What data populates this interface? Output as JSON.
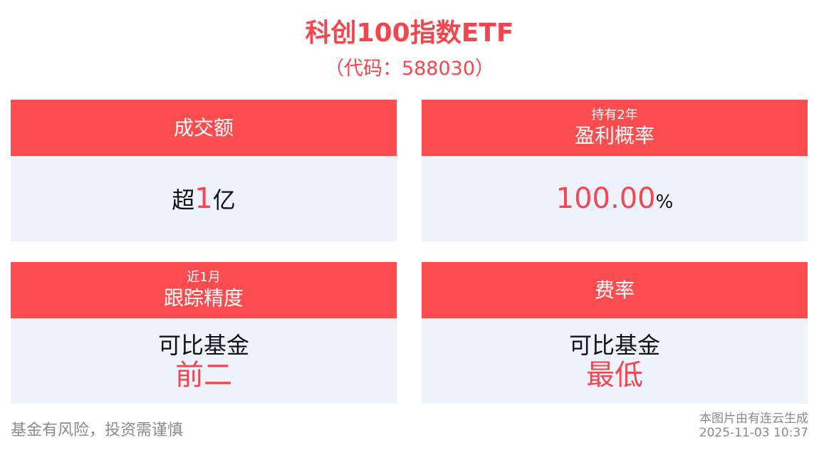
{
  "header": {
    "title": "科创100指数ETF",
    "subtitle": "（代码：588030）"
  },
  "cards": [
    {
      "title": "成交额",
      "body": {
        "prefix": "超",
        "highlight": "1",
        "suffix": "亿"
      }
    },
    {
      "pretitle": "持有2年",
      "title": "盈利概率",
      "body": {
        "highlight": "100.00",
        "suffix": "%"
      }
    },
    {
      "pretitle": "近1月",
      "title": "跟踪精度",
      "body": {
        "line": "可比基金",
        "highlight": "前二"
      }
    },
    {
      "title": "费率",
      "body": {
        "line": "可比基金",
        "highlight": "最低"
      }
    }
  ],
  "footer": {
    "disclaimer": "基金有风险，投资需谨慎",
    "source": "本图片由有连云生成",
    "timestamp": "2025-11-03 10:37"
  }
}
